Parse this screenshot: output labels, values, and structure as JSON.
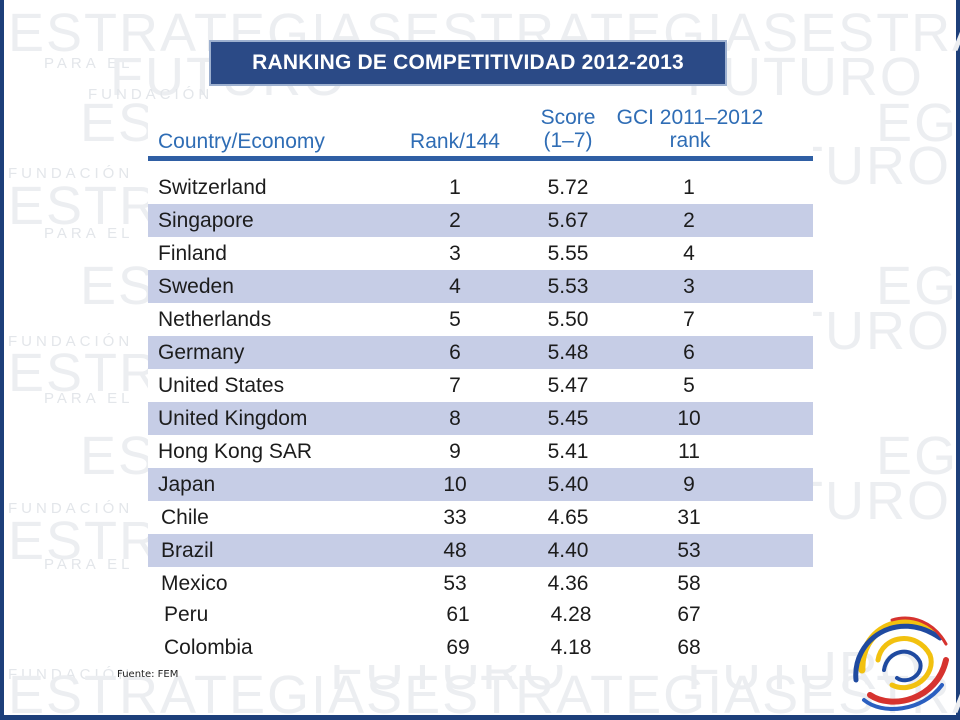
{
  "slide": {
    "title": "RANKING DE COMPETITIVIDAD 2012-2013",
    "source": "Fuente:  FEM",
    "watermark": {
      "big": "ESTRATEGIAS",
      "big2": "FUTURO",
      "small": "FUNDACIÓN",
      "small2": "PARA EL"
    }
  },
  "table": {
    "headers": {
      "country": "Country/Economy",
      "rank": "Rank/144",
      "score_line1": "Score",
      "score_line2": "(1–7)",
      "gci_line1": "GCI 2011–2012",
      "gci_line2": "rank"
    },
    "rows": [
      {
        "country": "Switzerland",
        "rank": "1",
        "score": "5.72",
        "gci": "1"
      },
      {
        "country": "Singapore",
        "rank": "2",
        "score": "5.67",
        "gci": "2"
      },
      {
        "country": "Finland",
        "rank": "3",
        "score": "5.55",
        "gci": "4"
      },
      {
        "country": "Sweden",
        "rank": "4",
        "score": "5.53",
        "gci": "3"
      },
      {
        "country": "Netherlands",
        "rank": "5",
        "score": "5.50",
        "gci": "7"
      },
      {
        "country": "Germany",
        "rank": "6",
        "score": "5.48",
        "gci": "6"
      },
      {
        "country": "United States",
        "rank": "7",
        "score": "5.47",
        "gci": "5"
      },
      {
        "country": "United Kingdom",
        "rank": "8",
        "score": "5.45",
        "gci": "10"
      },
      {
        "country": "Hong Kong SAR",
        "rank": "9",
        "score": "5.41",
        "gci": "11"
      },
      {
        "country": "Japan",
        "rank": "10",
        "score": "5.40",
        "gci": "9"
      },
      {
        "country": "Chile",
        "rank": "33",
        "score": "4.65",
        "gci": "31"
      },
      {
        "country": "Brazil",
        "rank": "48",
        "score": "4.40",
        "gci": "53"
      },
      {
        "country": "Mexico",
        "rank": "53",
        "score": "4.36",
        "gci": "58"
      },
      {
        "country": "Peru",
        "rank": "61",
        "score": "4.28",
        "gci": "67"
      },
      {
        "country": "Colombia",
        "rank": "69",
        "score": "4.18",
        "gci": "68"
      }
    ]
  },
  "colors": {
    "title_bg": "#2b4a86",
    "header_text": "#2f6db5",
    "row_shade": "#c6cde6",
    "frame": "#1d3f7a"
  }
}
